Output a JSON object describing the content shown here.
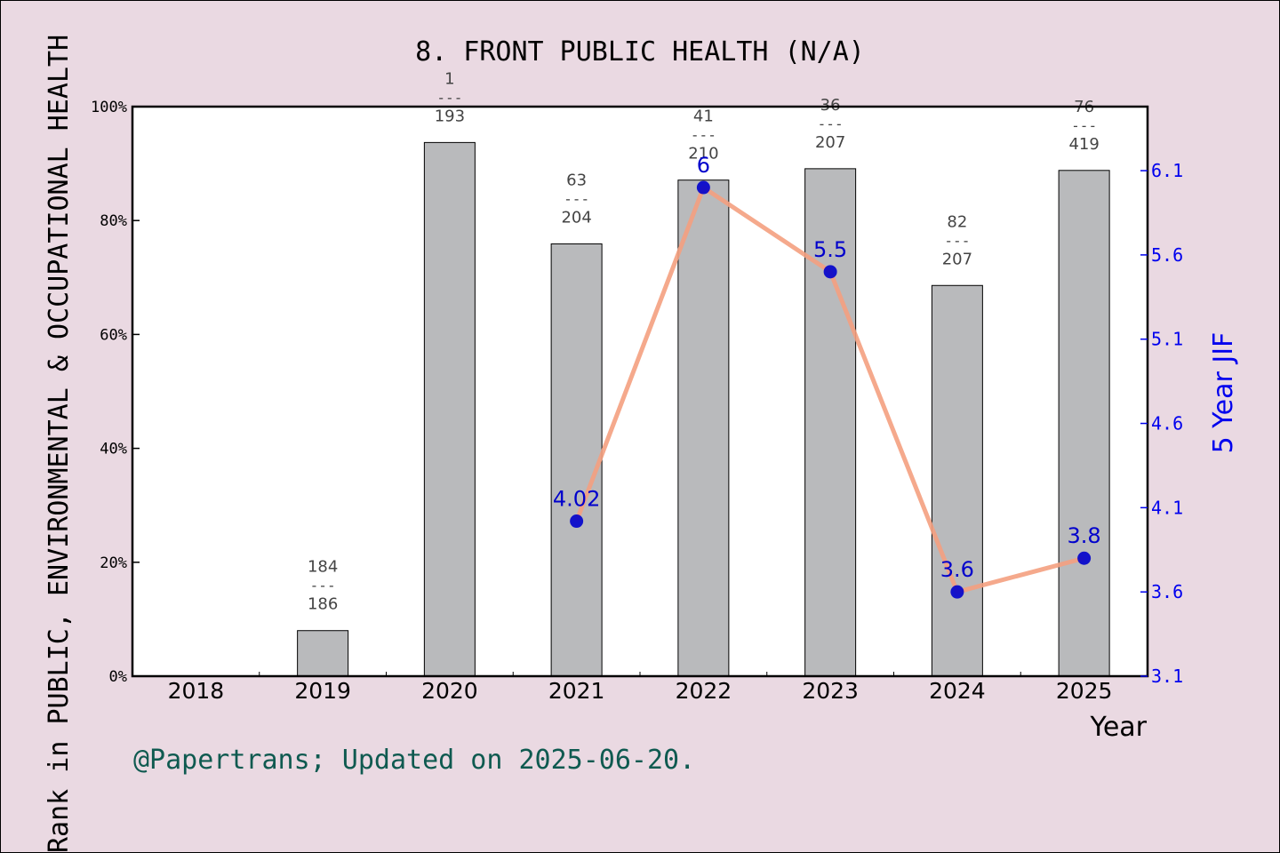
{
  "chart_data": {
    "type": "bar",
    "title": "8. FRONT PUBLIC HEALTH (N/A)",
    "xlabel": "Year",
    "ylabel_left": "Rank in PUBLIC, ENVIRONMENTAL & OCCUPATIONAL HEALTH",
    "ylabel_right": "5 Year JIF",
    "categories": [
      "2018",
      "2019",
      "2020",
      "2021",
      "2022",
      "2023",
      "2024",
      "2025"
    ],
    "left_axis": {
      "ylim": [
        0,
        100
      ],
      "ticks": [
        "0%",
        "20%",
        "40%",
        "60%",
        "80%",
        "100%"
      ]
    },
    "right_axis": {
      "ylim": [
        3.1,
        6.48
      ],
      "ticks": [
        "3.1",
        "3.6",
        "4.1",
        "4.6",
        "5.1",
        "5.6",
        "6.1"
      ]
    },
    "bars": {
      "name": "rank percentile",
      "values": [
        null,
        8,
        93.7,
        75.9,
        87.1,
        89.1,
        68.6,
        88.8
      ],
      "rank_labels": [
        null,
        {
          "rank": "184",
          "sep": "---",
          "total": "186"
        },
        {
          "rank": "1",
          "sep": "---",
          "total": "193"
        },
        {
          "rank": "63",
          "sep": "---",
          "total": "204"
        },
        {
          "rank": "41",
          "sep": "---",
          "total": "210"
        },
        {
          "rank": "36",
          "sep": "---",
          "total": "207"
        },
        {
          "rank": "82",
          "sep": "---",
          "total": "207"
        },
        {
          "rank": "76",
          "sep": "---",
          "total": "419"
        }
      ],
      "color": "#b9babc"
    },
    "line": {
      "name": "5 Year JIF",
      "values": [
        null,
        null,
        null,
        4.02,
        6.0,
        5.5,
        3.6,
        3.8
      ],
      "labels": [
        null,
        null,
        null,
        "4.02",
        "6",
        "5.5",
        "3.6",
        "3.8"
      ],
      "line_color": "#f4a07f",
      "marker_color": "#0000cc"
    },
    "grid": false,
    "footer": "@Papertrans; Updated on 2025-06-20."
  }
}
